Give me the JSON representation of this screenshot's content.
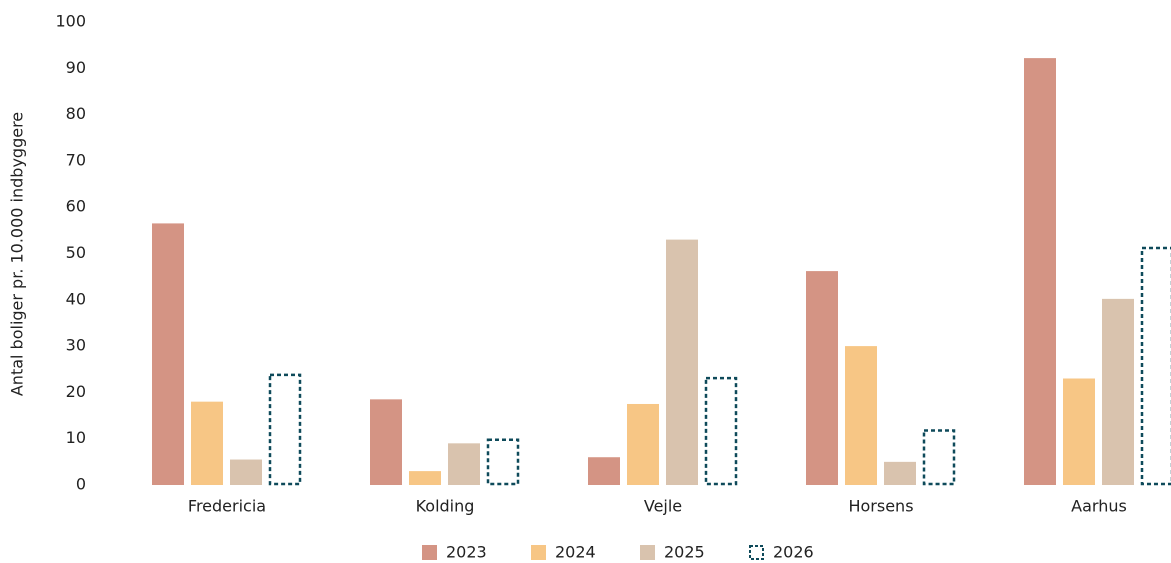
{
  "chart_data": {
    "type": "bar",
    "y_label": "Antal boliger pr. 10.000 indbyggere",
    "categories": [
      "Fredericia",
      "Kolding",
      "Vejle",
      "Horsens",
      "Aarhus"
    ],
    "series": [
      {
        "name": "2023",
        "color": "#d49484",
        "values": [
          56.5,
          18.5,
          6,
          46.2,
          92.2
        ]
      },
      {
        "name": "2024",
        "color": "#f7c685",
        "values": [
          18,
          3,
          17.5,
          30,
          23
        ]
      },
      {
        "name": "2025",
        "color": "#d9c3ae",
        "values": [
          5.5,
          9,
          53,
          5,
          40.2
        ]
      },
      {
        "name": "2026",
        "color": "#0e4a5a",
        "border_style": "dashed",
        "values": [
          24,
          10,
          23.3,
          12,
          51.4
        ]
      }
    ],
    "ylim": [
      0,
      100
    ],
    "yticks": [
      0,
      10,
      20,
      30,
      40,
      50,
      60,
      70,
      80,
      90,
      100
    ],
    "grid": false
  }
}
